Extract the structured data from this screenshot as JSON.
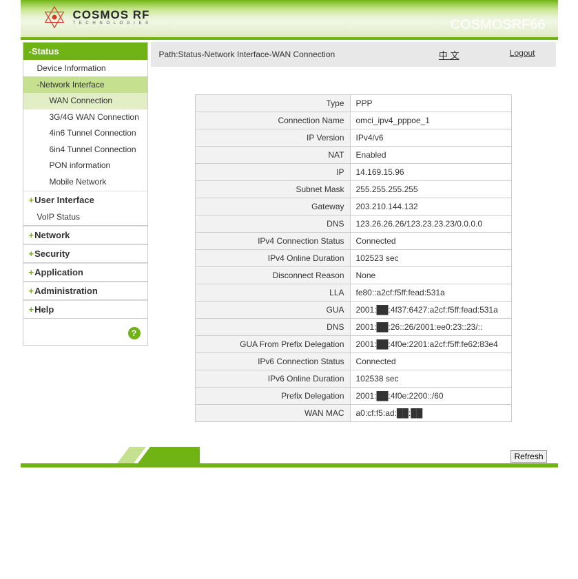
{
  "header": {
    "brand_main": "COSMOS RF",
    "brand_sub": "T E C H N O L O G I E S",
    "device_name": "COSMOSRF66"
  },
  "topbar": {
    "breadcrumb": "Path:Status-Network Interface-WAN Connection",
    "lang": "中 文",
    "logout": "Logout"
  },
  "sidebar": {
    "status_label": "-Status",
    "device_info": "Device Information",
    "network_interface": "-Network Interface",
    "leaves": [
      "WAN Connection",
      "3G/4G WAN Connection",
      "4in6 Tunnel Connection",
      "6in4 Tunnel Connection",
      "PON information",
      "Mobile Network"
    ],
    "user_interface": "User Interface",
    "voip_status": "VoIP Status",
    "sections": [
      "Network",
      "Security",
      "Application",
      "Administration",
      "Help"
    ],
    "help_icon": "?"
  },
  "table": {
    "rows": [
      {
        "label": "Type",
        "value": "PPP"
      },
      {
        "label": "Connection Name",
        "value": "omci_ipv4_pppoe_1"
      },
      {
        "label": "IP Version",
        "value": "IPv4/v6"
      },
      {
        "label": "NAT",
        "value": "Enabled"
      },
      {
        "label": "IP",
        "value": "14.169.15.96"
      },
      {
        "label": "Subnet Mask",
        "value": "255.255.255.255"
      },
      {
        "label": "Gateway",
        "value": "203.210.144.132"
      },
      {
        "label": "DNS",
        "value": "123.26.26.26/123.23.23.23/0.0.0.0"
      },
      {
        "label": "IPv4 Connection Status",
        "value": "Connected"
      },
      {
        "label": "IPv4 Online Duration",
        "value": "102523 sec"
      },
      {
        "label": "Disconnect Reason",
        "value": "None"
      },
      {
        "label": "LLA",
        "value": "fe80::a2cf:f5ff:fead:531a"
      },
      {
        "label": "GUA",
        "value": "2001:██:4f37:6427:a2cf:f5ff:fead:531a"
      },
      {
        "label": "DNS",
        "value": "2001:██:26::26/2001:ee0:23::23/::"
      },
      {
        "label": "GUA From Prefix Delegation",
        "value": "2001:██:4f0e:2201:a2cf:f5ff:fe62:83e4"
      },
      {
        "label": "IPv6 Connection Status",
        "value": "Connected"
      },
      {
        "label": "IPv6 Online Duration",
        "value": "102538 sec"
      },
      {
        "label": "Prefix Delegation",
        "value": "2001:██:4f0e:2200::/60"
      },
      {
        "label": "WAN MAC",
        "value": "a0:cf:f5:ad:██:██"
      }
    ]
  },
  "footer": {
    "refresh": "Refresh"
  },
  "colors": {
    "brand_green": "#6fb314",
    "light_green": "#c5e08e",
    "pale_green": "#e2eec6",
    "header_gray": "#e8e8e8",
    "label_bg": "#f2f2f2",
    "logo_red": "#e03030"
  }
}
